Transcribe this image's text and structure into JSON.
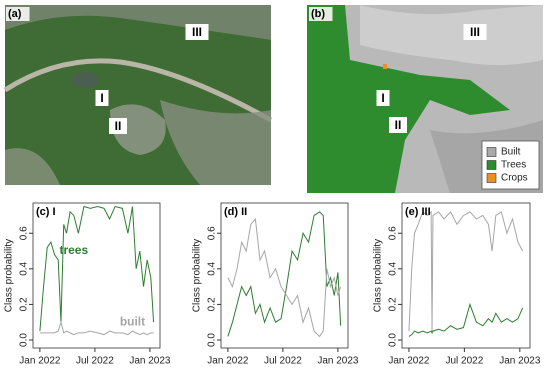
{
  "images": [
    {
      "label": "(a)",
      "markers": [
        "I",
        "II",
        "III"
      ]
    },
    {
      "label": "(b)",
      "markers": [
        "I",
        "II",
        "III"
      ],
      "legend": [
        {
          "name": "Built",
          "color": "#a9a9a9"
        },
        {
          "name": "Trees",
          "color": "#2e8b2e"
        },
        {
          "name": "Crops",
          "color": "#e8912b"
        }
      ]
    }
  ],
  "chart_data": [
    {
      "type": "line",
      "title": "(c) I",
      "y_label": "Class probability",
      "x": [
        0,
        0.4,
        0.8,
        1.2,
        1.6,
        2.0,
        2.3,
        2.6,
        2.9,
        3.3,
        3.7,
        4.2,
        4.8,
        5.5,
        6.3,
        7.0,
        7.6,
        8.2,
        9.0,
        9.6,
        10.1,
        10.5,
        10.9,
        11.3,
        11.7,
        12.1,
        12.4
      ],
      "series": [
        {
          "name": "trees",
          "color": "#2e7d32",
          "values": [
            0.05,
            0.3,
            0.52,
            0.55,
            0.48,
            0.45,
            0.1,
            0.65,
            0.6,
            0.72,
            0.7,
            0.6,
            0.75,
            0.74,
            0.75,
            0.74,
            0.68,
            0.75,
            0.74,
            0.6,
            0.75,
            0.4,
            0.5,
            0.3,
            0.45,
            0.35,
            0.1
          ]
        },
        {
          "name": "built",
          "color": "#a6a6a6",
          "values": [
            0.04,
            0.04,
            0.04,
            0.04,
            0.04,
            0.05,
            0.1,
            0.04,
            0.05,
            0.04,
            0.03,
            0.04,
            0.04,
            0.05,
            0.04,
            0.03,
            0.05,
            0.04,
            0.04,
            0.03,
            0.05,
            0.04,
            0.03,
            0.04,
            0.03,
            0.04,
            0.04
          ]
        }
      ],
      "xlim": [
        -0.75,
        13.1
      ],
      "xticks": [
        {
          "value": 0,
          "label": "Jan 2022"
        },
        {
          "value": 6,
          "label": "Jul 2022"
        },
        {
          "value": 12,
          "label": "Jan 2023"
        }
      ],
      "ylim": [
        -0.045,
        0.77
      ],
      "yticks": [
        {
          "value": 0,
          "label": "0.0"
        },
        0.2,
        0.4,
        0.6
      ]
    },
    {
      "type": "line",
      "title": "(d) II",
      "y_label": "Class probability",
      "x": [
        0,
        0.5,
        1.0,
        1.5,
        2.0,
        2.5,
        3.0,
        3.5,
        4.0,
        4.6,
        5.2,
        5.8,
        6.4,
        7.0,
        7.6,
        8.2,
        8.8,
        9.4,
        10.0,
        10.4,
        10.8,
        11.2,
        11.6,
        12.0,
        12.3
      ],
      "series": [
        {
          "color": "#2e7d32",
          "values": [
            0.02,
            0.1,
            0.2,
            0.3,
            0.25,
            0.3,
            0.15,
            0.2,
            0.1,
            0.18,
            0.1,
            0.12,
            0.3,
            0.5,
            0.45,
            0.6,
            0.55,
            0.7,
            0.72,
            0.7,
            0.3,
            0.35,
            0.25,
            0.38,
            0.08
          ]
        },
        {
          "color": "#a6a6a6",
          "values": [
            0.35,
            0.3,
            0.4,
            0.55,
            0.5,
            0.65,
            0.68,
            0.45,
            0.5,
            0.35,
            0.4,
            0.3,
            0.25,
            0.2,
            0.25,
            0.1,
            0.18,
            0.05,
            0.02,
            0.05,
            0.4,
            0.3,
            0.35,
            0.25,
            0.3
          ]
        }
      ],
      "xlim": [
        -0.75,
        13.1
      ],
      "xticks": [
        {
          "value": 0,
          "label": "Jan 2022"
        },
        {
          "value": 6,
          "label": "Jul 2022"
        },
        {
          "value": 12,
          "label": "Jan 2023"
        }
      ],
      "ylim": [
        -0.045,
        0.77
      ],
      "yticks": [
        {
          "value": 0,
          "label": "0.0"
        },
        0.2,
        0.4,
        0.6
      ]
    },
    {
      "type": "line",
      "title": "(e) III",
      "y_label": "Class probability",
      "x": [
        0,
        0.3,
        0.6,
        1.0,
        1.5,
        2.0,
        2.4,
        2.5,
        2.6,
        3.2,
        3.8,
        4.5,
        5.2,
        5.9,
        6.6,
        7.3,
        8.0,
        8.6,
        9.0,
        9.4,
        10.0,
        10.6,
        11.2,
        11.8,
        12.3
      ],
      "series": [
        {
          "color": "#a6a6a6",
          "values": [
            0.05,
            0.4,
            0.6,
            0.65,
            0.72,
            0.7,
            0.72,
            0.05,
            0.7,
            0.72,
            0.68,
            0.72,
            0.65,
            0.7,
            0.72,
            0.68,
            0.7,
            0.65,
            0.5,
            0.7,
            0.72,
            0.6,
            0.68,
            0.55,
            0.5
          ]
        },
        {
          "color": "#2e7d32",
          "values": [
            0.02,
            0.03,
            0.05,
            0.04,
            0.05,
            0.04,
            0.05,
            0.04,
            0.05,
            0.06,
            0.05,
            0.08,
            0.06,
            0.07,
            0.2,
            0.1,
            0.08,
            0.12,
            0.1,
            0.15,
            0.1,
            0.12,
            0.1,
            0.12,
            0.18
          ]
        }
      ],
      "xlim": [
        -0.75,
        13.1
      ],
      "xticks": [
        {
          "value": 0,
          "label": "Jan 2022"
        },
        {
          "value": 6,
          "label": "Jul 2022"
        },
        {
          "value": 12,
          "label": "Jan 2023"
        }
      ],
      "ylim": [
        -0.045,
        0.77
      ],
      "yticks": [
        {
          "value": 0,
          "label": "0.0"
        },
        0.2,
        0.4,
        0.6
      ]
    }
  ]
}
